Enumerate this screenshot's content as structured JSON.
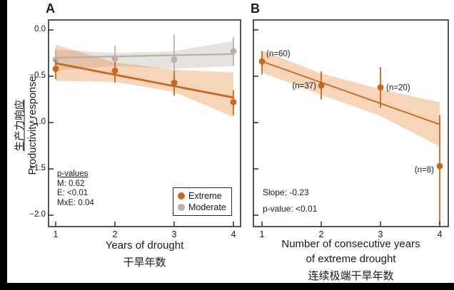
{
  "figure": {
    "panel_a_label": "A",
    "panel_b_label": "B",
    "ylabel_zh": "生产力响应",
    "ylabel_en": "Productivity response",
    "yticks": [
      0,
      -0.5,
      -1.0,
      -1.5,
      -2.0
    ],
    "ytick_labels": [
      "0.0",
      "−0.5",
      "−1.0",
      "−1.5",
      "−2.0"
    ],
    "colors": {
      "extreme": "#c8671d",
      "extreme_band": "rgba(228,136,55,0.35)",
      "moderate": "#b9b1a9",
      "moderate_band": "rgba(186,178,170,0.38)",
      "frame": "#2b2b2b",
      "text": "#1a1a1a",
      "border_black": "#000000"
    }
  },
  "chart_data": [
    {
      "panel": "A",
      "type": "scatter",
      "title": "",
      "xlabel": "Years of drought",
      "xlabel_zh": "干旱年数",
      "ylabel": "Productivity response",
      "x": [
        1,
        2,
        3,
        4
      ],
      "xtick_labels": [
        "1",
        "2",
        "3",
        "4"
      ],
      "ylim": [
        0.11,
        -2.12
      ],
      "grid": false,
      "series": [
        {
          "name": "Extreme",
          "color": "#c8671d",
          "band_color": "rgba(228,136,55,0.35)",
          "trend_width": 2.8,
          "y": [
            -0.42,
            -0.44,
            -0.57,
            -0.78
          ],
          "err_top": [
            -0.32,
            -0.35,
            -0.44,
            -0.65
          ],
          "err_bot": [
            -0.53,
            -0.57,
            -0.71,
            -0.92
          ],
          "trend": {
            "x1": 1,
            "y1": -0.36,
            "x2": 4,
            "y2": -0.73
          },
          "band_top": [
            -0.16,
            -0.35,
            -0.43,
            -0.46
          ],
          "band_bot": [
            -0.55,
            -0.56,
            -0.67,
            -0.94
          ]
        },
        {
          "name": "Moderate",
          "color": "#b9b1a9",
          "band_color": "rgba(186,178,170,0.38)",
          "trend_width": 2.4,
          "y": [
            -0.32,
            -0.31,
            -0.32,
            -0.23
          ],
          "err_top": [
            -0.21,
            -0.17,
            -0.05,
            -0.08
          ],
          "err_bot": [
            -0.44,
            -0.4,
            -0.65,
            -0.39
          ],
          "trend": {
            "x1": 1,
            "y1": -0.3,
            "x2": 4,
            "y2": -0.26
          },
          "band_top": [
            -0.21,
            -0.25,
            -0.23,
            -0.12
          ],
          "band_bot": [
            -0.44,
            -0.39,
            -0.42,
            -0.39
          ]
        }
      ],
      "stats": {
        "title": "p-values",
        "lines": [
          "M: 0.62",
          "E: <0.01",
          "MxE: 0.04"
        ]
      },
      "legend": [
        {
          "label": "Extreme",
          "color": "#c8671d"
        },
        {
          "label": "Moderate",
          "color": "#b9b1a9"
        }
      ],
      "legend_position": "bottom-right"
    },
    {
      "panel": "B",
      "type": "scatter",
      "title": "",
      "xlabel_line1": "Number of consecutive years",
      "xlabel_line2": "of extreme drought",
      "xlabel_zh": "连续极端干旱年数",
      "x": [
        1,
        2,
        3,
        4
      ],
      "xtick_labels": [
        "1",
        "2",
        "3",
        "4"
      ],
      "ylim": [
        0.11,
        -2.12
      ],
      "grid": false,
      "series": [
        {
          "name": "Extreme",
          "color": "#c8671d",
          "band_color": "rgba(228,136,55,0.35)",
          "trend_width": 1.8,
          "y": [
            -0.34,
            -0.6,
            -0.62,
            -1.47
          ],
          "err_top": [
            -0.23,
            -0.45,
            -0.4,
            -0.92
          ],
          "err_bot": [
            -0.48,
            -0.75,
            -0.84,
            -2.1
          ],
          "trend": {
            "x1": 1,
            "y1": -0.34,
            "x2": 4,
            "y2": -1.02
          },
          "band_top": [
            -0.22,
            -0.47,
            -0.64,
            -0.78
          ],
          "band_bot": [
            -0.46,
            -0.7,
            -0.93,
            -1.26
          ],
          "point_labels": [
            {
              "text": "(n=60)",
              "dx": 6,
              "dy": -7,
              "anchor": "start"
            },
            {
              "text": "(n=37)",
              "dx": -7,
              "dy": 4,
              "anchor": "end"
            },
            {
              "text": "(n=20)",
              "dx": 8,
              "dy": 4,
              "anchor": "start"
            },
            {
              "text": "(n=8)",
              "dx": -8,
              "dy": 9,
              "anchor": "end"
            }
          ]
        }
      ],
      "stats": {
        "lines": [
          "Slope: -0.23",
          "p-value: <0.01"
        ]
      }
    }
  ]
}
